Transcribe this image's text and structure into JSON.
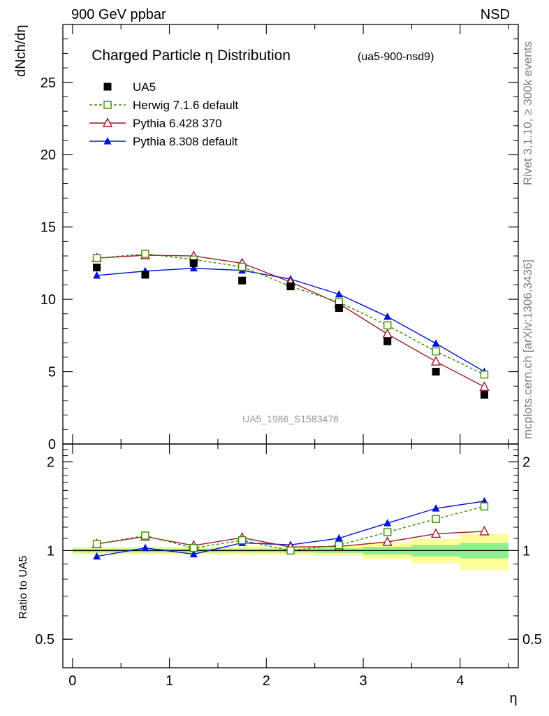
{
  "header": {
    "beam_label": "900 GeV ppbar",
    "process_label": "NSD",
    "rivet_label": "Rivet 3.1.10, ≥ 300k events",
    "mcplots_label": "mcplots.cern.ch [arXiv:1306.3436]",
    "analysis_id": "UA5_1986_S1583476"
  },
  "chart_data": [
    {
      "type": "line",
      "title": "Charged Particle η Distribution",
      "subtitle": "(ua5-900-nsd9)",
      "ylabel": "dNch/dη",
      "ylim": [
        0,
        29
      ],
      "yticks": [
        0,
        5,
        10,
        15,
        20,
        25
      ],
      "ytick_labels": [
        "0",
        "5",
        "10",
        "15",
        "20",
        "25"
      ],
      "legend_position": "top-left",
      "x": [
        0.25,
        0.75,
        1.25,
        1.75,
        2.25,
        2.75,
        3.25,
        3.75,
        4.25
      ],
      "series": [
        {
          "name": "UA5",
          "style": "data",
          "color": "#000000",
          "marker": "filled-square",
          "values": [
            12.2,
            11.7,
            12.5,
            11.3,
            10.9,
            9.4,
            7.1,
            5.0,
            3.4
          ]
        },
        {
          "name": "Herwig 7.1.6 default",
          "style": "dashed",
          "color": "#3a8b00",
          "marker": "open-square",
          "values": [
            12.85,
            13.15,
            12.75,
            12.25,
            10.9,
            9.8,
            8.2,
            6.4,
            4.8
          ]
        },
        {
          "name": "Pythia 6.428 370",
          "style": "solid",
          "color": "#9b1b2b",
          "marker": "open-triangle",
          "values": [
            12.85,
            13.05,
            13.0,
            12.5,
            11.2,
            9.7,
            7.6,
            5.7,
            3.95
          ]
        },
        {
          "name": "Pythia 8.308 default",
          "style": "solid",
          "color": "#0012d6",
          "marker": "filled-triangle",
          "values": [
            11.65,
            11.95,
            12.15,
            12.0,
            11.4,
            10.35,
            8.8,
            6.95,
            5.0
          ]
        }
      ]
    },
    {
      "type": "line",
      "ylabel": "Ratio to UA5",
      "xlabel": "η",
      "ylim": [
        0.4,
        2.3
      ],
      "xlim": [
        -0.1,
        4.6
      ],
      "yticks": [
        0.5,
        1,
        2
      ],
      "ytick_labels": [
        "0.5",
        "1",
        "2"
      ],
      "xticks": [
        0,
        1,
        2,
        3,
        4
      ],
      "xtick_labels": [
        "0",
        "1",
        "2",
        "3",
        "4"
      ],
      "bands": {
        "edges": [
          0,
          0.5,
          1.0,
          1.5,
          2.0,
          2.5,
          3.0,
          3.5,
          4.0,
          4.5
        ],
        "stat_color": "#90ee90",
        "total_color": "#ffff99",
        "stat_half_width": [
          0.015,
          0.015,
          0.015,
          0.015,
          0.015,
          0.018,
          0.03,
          0.045,
          0.06
        ],
        "total_half_width": [
          0.03,
          0.03,
          0.03,
          0.032,
          0.032,
          0.04,
          0.065,
          0.095,
          0.14
        ]
      },
      "x": [
        0.25,
        0.75,
        1.25,
        1.75,
        2.25,
        2.75,
        3.25,
        3.75,
        4.25
      ],
      "series": [
        {
          "name": "Herwig 7.1.6 default",
          "values": [
            1.053,
            1.124,
            1.02,
            1.084,
            1.0,
            1.043,
            1.155,
            1.28,
            1.412
          ]
        },
        {
          "name": "Pythia 6.428 370",
          "values": [
            1.053,
            1.115,
            1.04,
            1.106,
            1.028,
            1.032,
            1.07,
            1.14,
            1.162
          ]
        },
        {
          "name": "Pythia 8.308 default",
          "values": [
            0.955,
            1.021,
            0.972,
            1.062,
            1.046,
            1.101,
            1.239,
            1.39,
            1.471
          ]
        }
      ]
    }
  ]
}
